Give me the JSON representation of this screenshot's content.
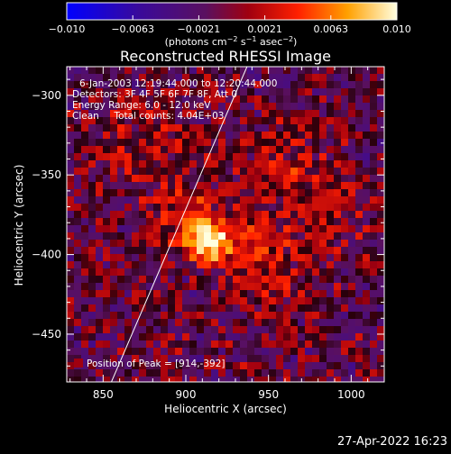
{
  "colorbar": {
    "ticks": [
      "−0.010",
      "−0.0063",
      "−0.0021",
      "0.0021",
      "0.0063",
      "0.010"
    ],
    "units_prefix": "(photons cm",
    "units_exp1": "−2",
    "units_mid": " s",
    "units_exp2": "−1",
    "units_mid2": " asec",
    "units_exp3": "−2",
    "units_suffix": ")"
  },
  "plot": {
    "title": "Reconstructed RHESSI Image",
    "xlabel": "Heliocentric X (arcsec)",
    "ylabel": "Heliocentric Y (arcsec)",
    "info": [
      "6-Jan-2003 12:19:44.000 to 12:20:44.000",
      "Detectors: 3F 4F 5F 6F 7F 8F, Att 0",
      "Energy Range: 6.0 - 12.0 keV",
      "Clean     Total counts: 4.04E+03"
    ],
    "peak_label": "Position of Peak = [914,-392]"
  },
  "footer": {
    "timestamp": "27-Apr-2022 16:23"
  },
  "chart_data": {
    "type": "heatmap",
    "title": "Reconstructed RHESSI Image",
    "xlabel": "Heliocentric X (arcsec)",
    "ylabel": "Heliocentric Y (arcsec)",
    "xlim": [
      828,
      1020
    ],
    "ylim": [
      -480,
      -282
    ],
    "x_ticks": [
      850,
      900,
      950,
      1000
    ],
    "y_ticks": [
      -300,
      -350,
      -400,
      -450
    ],
    "x_tick_labels": [
      "850",
      "900",
      "950",
      "1000"
    ],
    "y_tick_labels": [
      "−300",
      "−350",
      "−400",
      "−450"
    ],
    "colorbar_range": [
      -0.01,
      0.01
    ],
    "peak": [
      914,
      -392
    ],
    "limb_line": [
      [
        855,
        -480
      ],
      [
        937,
        -282
      ]
    ],
    "sources": [
      {
        "x": 914,
        "y": -392,
        "amp": 0.0095,
        "sigma": 9
      },
      {
        "x": 900,
        "y": -375,
        "amp": 0.004,
        "sigma": 16
      },
      {
        "x": 940,
        "y": -395,
        "amp": 0.003,
        "sigma": 14
      },
      {
        "x": 960,
        "y": -345,
        "amp": 0.0025,
        "sigma": 20
      },
      {
        "x": 870,
        "y": -330,
        "amp": 0.002,
        "sigma": 22
      },
      {
        "x": 985,
        "y": -380,
        "amp": 0.002,
        "sigma": 18
      },
      {
        "x": 950,
        "y": -430,
        "amp": 0.0015,
        "sigma": 18
      }
    ]
  }
}
